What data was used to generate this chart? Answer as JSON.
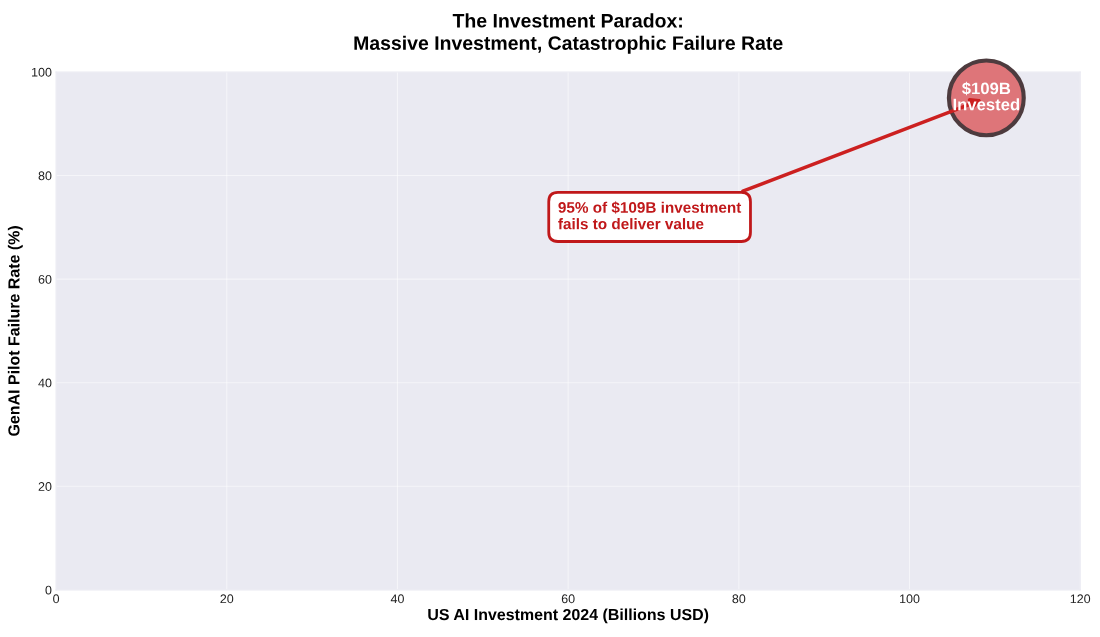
{
  "chart_data": {
    "type": "scatter",
    "title": "The Investment Paradox:\nMassive Investment, Catastrophic Failure Rate",
    "xlabel": "US AI Investment 2024 (Billions USD)",
    "ylabel": "GenAI Pilot Failure Rate (%)",
    "x": [
      109
    ],
    "series": [
      {
        "color": "#de7579",
        "values": [
          95
        ]
      }
    ],
    "marker": "circle",
    "xlim": [
      0,
      120
    ],
    "xticks": [
      0,
      20,
      40,
      60,
      80,
      100,
      120
    ],
    "ylim": [
      0,
      100
    ],
    "yticks": [
      0,
      20,
      40,
      60,
      80,
      100
    ],
    "grid": true,
    "annotations": [
      {
        "text": "$109B\nInvested",
        "x": 109,
        "y": 95
      },
      {
        "text": "95% of $109B investment\nfails to deliver value",
        "x": 109,
        "y": 95
      }
    ]
  }
}
